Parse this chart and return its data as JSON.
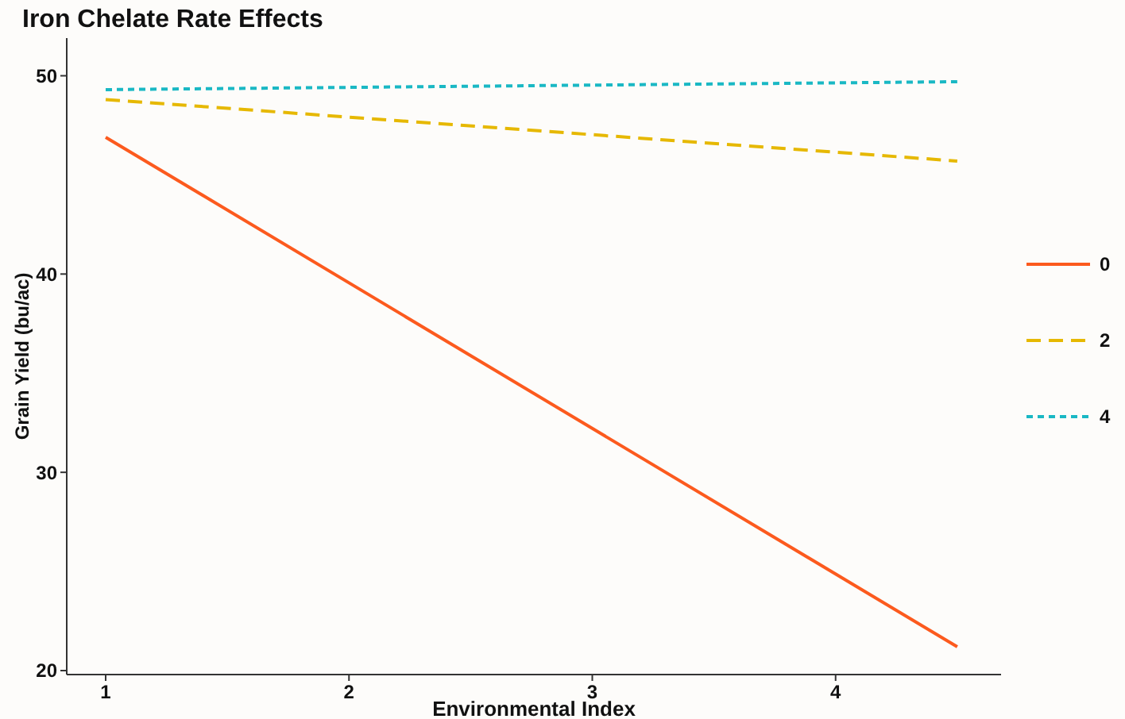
{
  "chart_data": {
    "type": "line",
    "title": "Iron Chelate Rate Effects",
    "xlabel": "Environmental Index",
    "ylabel": "Grain Yield (bu/ac)",
    "x": [
      1,
      4.5
    ],
    "series": [
      {
        "name": "0",
        "color": "#fc5a1e",
        "values": [
          46.9,
          21.2
        ],
        "line_style": "solid"
      },
      {
        "name": "2",
        "color": "#e6b800",
        "values": [
          48.8,
          45.7
        ],
        "line_style": "dashed"
      },
      {
        "name": "4",
        "color": "#1ab8c4",
        "values": [
          49.3,
          49.7
        ],
        "line_style": "dotted"
      }
    ],
    "xlim": [
      0.84,
      4.68
    ],
    "xticks": [
      1,
      2,
      3,
      4
    ],
    "ylim": [
      19.8,
      51.9
    ],
    "yticks": [
      20,
      30,
      40,
      50
    ],
    "grid": false,
    "legend": "right",
    "marker": "none"
  }
}
